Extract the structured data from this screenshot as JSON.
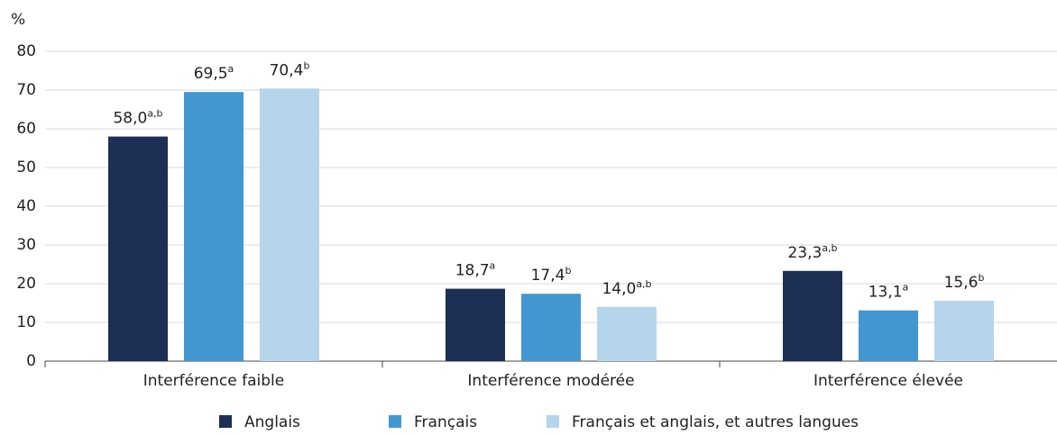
{
  "chart_data": {
    "type": "bar",
    "y_label": "%",
    "categories": [
      "Interférence faible",
      "Interférence modérée",
      "Interférence élevée"
    ],
    "series": [
      {
        "name": "Anglais",
        "color": "#1d2f54",
        "values": [
          58.0,
          18.7,
          23.3
        ],
        "value_labels": [
          "58,0",
          "18,7",
          "23,3"
        ],
        "value_superscripts": [
          "a,b",
          "a",
          "a,b"
        ]
      },
      {
        "name": "Français",
        "color": "#4397d0",
        "values": [
          69.5,
          17.4,
          13.1
        ],
        "value_labels": [
          "69,5",
          "17,4",
          "13,1"
        ],
        "value_superscripts": [
          "a",
          "b",
          "a"
        ]
      },
      {
        "name": "Français et anglais, et autres langues",
        "color": "#b5d5ea",
        "values": [
          70.4,
          14.0,
          15.6
        ],
        "value_labels": [
          "70,4",
          "14,0",
          "15,6"
        ],
        "value_superscripts": [
          "b",
          "a,b",
          "b"
        ]
      }
    ],
    "ylim": [
      0,
      80
    ],
    "yticks": [
      0,
      10,
      20,
      30,
      40,
      50,
      60,
      70,
      80
    ],
    "grid": true,
    "legend": "bottom"
  }
}
